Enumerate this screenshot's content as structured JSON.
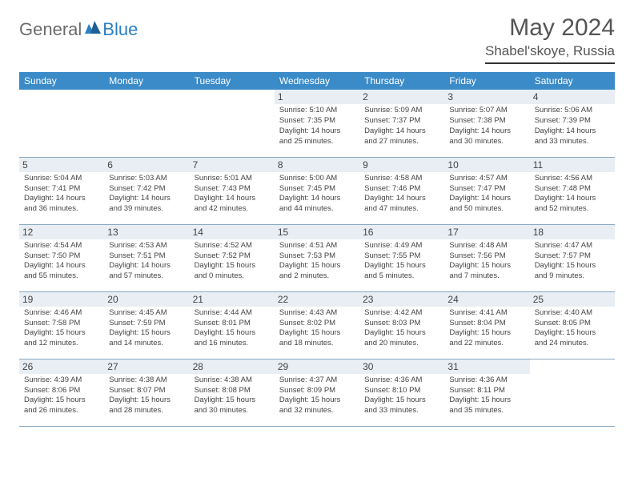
{
  "logo": {
    "gen": "General",
    "blue": "Blue"
  },
  "title": "May 2024",
  "location": "Shabel'skoye, Russia",
  "day_headers": [
    "Sunday",
    "Monday",
    "Tuesday",
    "Wednesday",
    "Thursday",
    "Friday",
    "Saturday"
  ],
  "colors": {
    "header_bg": "#3b8bc9",
    "header_fg": "#ffffff",
    "daynum_bg": "#e8eef3",
    "text": "#444444",
    "rule": "#8aa8c0",
    "logo_gray": "#6b6b6b",
    "logo_blue": "#2a80c5"
  },
  "weeks": [
    [
      null,
      null,
      null,
      {
        "n": "1",
        "sr": "Sunrise: 5:10 AM",
        "ss": "Sunset: 7:35 PM",
        "dl": "Daylight: 14 hours and 25 minutes."
      },
      {
        "n": "2",
        "sr": "Sunrise: 5:09 AM",
        "ss": "Sunset: 7:37 PM",
        "dl": "Daylight: 14 hours and 27 minutes."
      },
      {
        "n": "3",
        "sr": "Sunrise: 5:07 AM",
        "ss": "Sunset: 7:38 PM",
        "dl": "Daylight: 14 hours and 30 minutes."
      },
      {
        "n": "4",
        "sr": "Sunrise: 5:06 AM",
        "ss": "Sunset: 7:39 PM",
        "dl": "Daylight: 14 hours and 33 minutes."
      }
    ],
    [
      {
        "n": "5",
        "sr": "Sunrise: 5:04 AM",
        "ss": "Sunset: 7:41 PM",
        "dl": "Daylight: 14 hours and 36 minutes."
      },
      {
        "n": "6",
        "sr": "Sunrise: 5:03 AM",
        "ss": "Sunset: 7:42 PM",
        "dl": "Daylight: 14 hours and 39 minutes."
      },
      {
        "n": "7",
        "sr": "Sunrise: 5:01 AM",
        "ss": "Sunset: 7:43 PM",
        "dl": "Daylight: 14 hours and 42 minutes."
      },
      {
        "n": "8",
        "sr": "Sunrise: 5:00 AM",
        "ss": "Sunset: 7:45 PM",
        "dl": "Daylight: 14 hours and 44 minutes."
      },
      {
        "n": "9",
        "sr": "Sunrise: 4:58 AM",
        "ss": "Sunset: 7:46 PM",
        "dl": "Daylight: 14 hours and 47 minutes."
      },
      {
        "n": "10",
        "sr": "Sunrise: 4:57 AM",
        "ss": "Sunset: 7:47 PM",
        "dl": "Daylight: 14 hours and 50 minutes."
      },
      {
        "n": "11",
        "sr": "Sunrise: 4:56 AM",
        "ss": "Sunset: 7:48 PM",
        "dl": "Daylight: 14 hours and 52 minutes."
      }
    ],
    [
      {
        "n": "12",
        "sr": "Sunrise: 4:54 AM",
        "ss": "Sunset: 7:50 PM",
        "dl": "Daylight: 14 hours and 55 minutes."
      },
      {
        "n": "13",
        "sr": "Sunrise: 4:53 AM",
        "ss": "Sunset: 7:51 PM",
        "dl": "Daylight: 14 hours and 57 minutes."
      },
      {
        "n": "14",
        "sr": "Sunrise: 4:52 AM",
        "ss": "Sunset: 7:52 PM",
        "dl": "Daylight: 15 hours and 0 minutes."
      },
      {
        "n": "15",
        "sr": "Sunrise: 4:51 AM",
        "ss": "Sunset: 7:53 PM",
        "dl": "Daylight: 15 hours and 2 minutes."
      },
      {
        "n": "16",
        "sr": "Sunrise: 4:49 AM",
        "ss": "Sunset: 7:55 PM",
        "dl": "Daylight: 15 hours and 5 minutes."
      },
      {
        "n": "17",
        "sr": "Sunrise: 4:48 AM",
        "ss": "Sunset: 7:56 PM",
        "dl": "Daylight: 15 hours and 7 minutes."
      },
      {
        "n": "18",
        "sr": "Sunrise: 4:47 AM",
        "ss": "Sunset: 7:57 PM",
        "dl": "Daylight: 15 hours and 9 minutes."
      }
    ],
    [
      {
        "n": "19",
        "sr": "Sunrise: 4:46 AM",
        "ss": "Sunset: 7:58 PM",
        "dl": "Daylight: 15 hours and 12 minutes."
      },
      {
        "n": "20",
        "sr": "Sunrise: 4:45 AM",
        "ss": "Sunset: 7:59 PM",
        "dl": "Daylight: 15 hours and 14 minutes."
      },
      {
        "n": "21",
        "sr": "Sunrise: 4:44 AM",
        "ss": "Sunset: 8:01 PM",
        "dl": "Daylight: 15 hours and 16 minutes."
      },
      {
        "n": "22",
        "sr": "Sunrise: 4:43 AM",
        "ss": "Sunset: 8:02 PM",
        "dl": "Daylight: 15 hours and 18 minutes."
      },
      {
        "n": "23",
        "sr": "Sunrise: 4:42 AM",
        "ss": "Sunset: 8:03 PM",
        "dl": "Daylight: 15 hours and 20 minutes."
      },
      {
        "n": "24",
        "sr": "Sunrise: 4:41 AM",
        "ss": "Sunset: 8:04 PM",
        "dl": "Daylight: 15 hours and 22 minutes."
      },
      {
        "n": "25",
        "sr": "Sunrise: 4:40 AM",
        "ss": "Sunset: 8:05 PM",
        "dl": "Daylight: 15 hours and 24 minutes."
      }
    ],
    [
      {
        "n": "26",
        "sr": "Sunrise: 4:39 AM",
        "ss": "Sunset: 8:06 PM",
        "dl": "Daylight: 15 hours and 26 minutes."
      },
      {
        "n": "27",
        "sr": "Sunrise: 4:38 AM",
        "ss": "Sunset: 8:07 PM",
        "dl": "Daylight: 15 hours and 28 minutes."
      },
      {
        "n": "28",
        "sr": "Sunrise: 4:38 AM",
        "ss": "Sunset: 8:08 PM",
        "dl": "Daylight: 15 hours and 30 minutes."
      },
      {
        "n": "29",
        "sr": "Sunrise: 4:37 AM",
        "ss": "Sunset: 8:09 PM",
        "dl": "Daylight: 15 hours and 32 minutes."
      },
      {
        "n": "30",
        "sr": "Sunrise: 4:36 AM",
        "ss": "Sunset: 8:10 PM",
        "dl": "Daylight: 15 hours and 33 minutes."
      },
      {
        "n": "31",
        "sr": "Sunrise: 4:36 AM",
        "ss": "Sunset: 8:11 PM",
        "dl": "Daylight: 15 hours and 35 minutes."
      },
      null
    ]
  ]
}
